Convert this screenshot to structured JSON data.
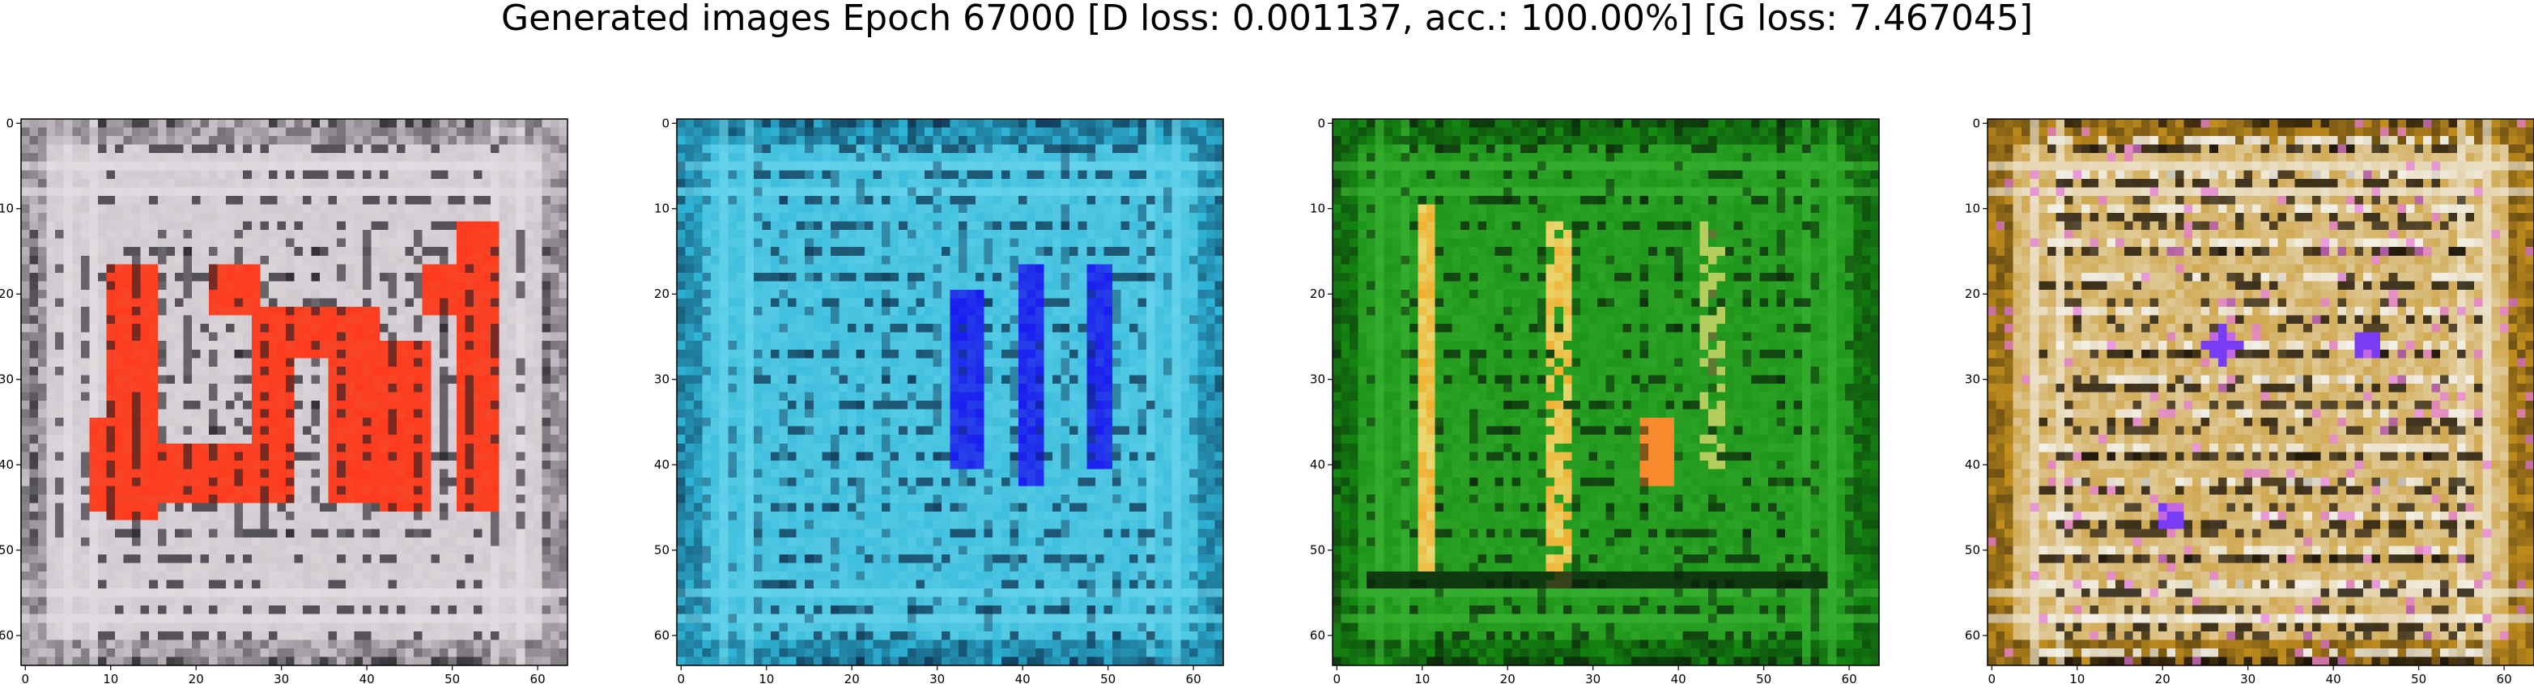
{
  "figure": {
    "title": "Generated images Epoch 67000 [D loss: 0.001137, acc.: 100.00%] [G loss: 7.467045]"
  },
  "chart_data": [
    {
      "type": "heatmap",
      "description_color": "greyish-white background with red blocky shapes",
      "palette": {
        "base": "#c9c2c8",
        "light": "#e6e1e6",
        "dark": "#1e1c22",
        "accent": "#ff3a1e",
        "accent2": "#f05030"
      },
      "xlim": [
        0,
        63
      ],
      "ylim": [
        63,
        0
      ],
      "xticks": [
        0,
        10,
        20,
        30,
        40,
        50,
        60
      ],
      "yticks": [
        0,
        10,
        20,
        30,
        40,
        50,
        60
      ],
      "xlabel": "",
      "ylabel": "",
      "title": "",
      "grid": false
    },
    {
      "type": "heatmap",
      "description_color": "cyan-blue texture with vertical blue stripes",
      "palette": {
        "base": "#2fb6d8",
        "light": "#6fd8ee",
        "dark": "#0a2a48",
        "accent": "#1a1cf0",
        "accent2": "#3a7ae0"
      },
      "xlim": [
        0,
        63
      ],
      "ylim": [
        63,
        0
      ],
      "xticks": [
        0,
        10,
        20,
        30,
        40,
        50,
        60
      ],
      "yticks": [
        0,
        10,
        20,
        30,
        40,
        50,
        60
      ],
      "xlabel": "",
      "ylabel": "",
      "title": "",
      "grid": false
    },
    {
      "type": "heatmap",
      "description_color": "green texture with yellow/orange vertical streaks",
      "palette": {
        "base": "#158a12",
        "light": "#3cb534",
        "dark": "#0a200a",
        "accent": "#f0b030",
        "accent2": "#e8d870"
      },
      "xlim": [
        0,
        63
      ],
      "ylim": [
        63,
        0
      ],
      "xticks": [
        0,
        10,
        20,
        30,
        40,
        50,
        60
      ],
      "yticks": [
        0,
        10,
        20,
        30,
        40,
        50,
        60
      ],
      "xlabel": "",
      "ylabel": "",
      "title": "",
      "grid": false
    },
    {
      "type": "heatmap",
      "description_color": "ochre/gold texture with white, black and purple spots",
      "palette": {
        "base": "#c4901e",
        "light": "#f2f0e8",
        "dark": "#1a1208",
        "accent": "#7a3cf0",
        "accent2": "#e0b84a"
      },
      "xlim": [
        0,
        63
      ],
      "ylim": [
        63,
        0
      ],
      "xticks": [
        0,
        10,
        20,
        30,
        40,
        50,
        60
      ],
      "yticks": [
        0,
        10,
        20,
        30,
        40,
        50,
        60
      ],
      "xlabel": "",
      "ylabel": "",
      "title": "",
      "grid": false
    }
  ]
}
